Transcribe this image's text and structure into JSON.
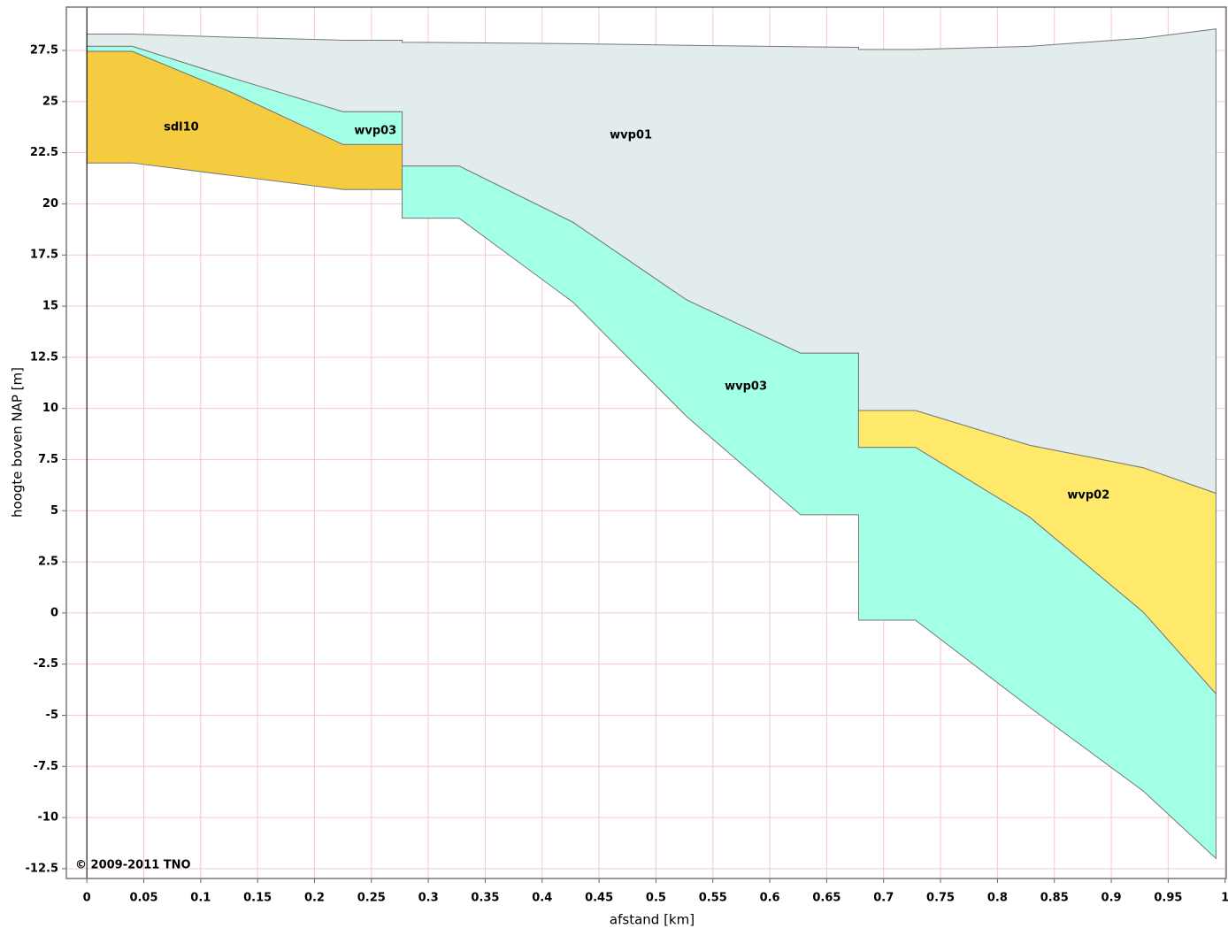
{
  "chart_data": {
    "type": "area",
    "x_label": "afstand [km]",
    "y_label": "hoogte boven NAP [m]",
    "copyright": "© 2009-2011 TNO",
    "xlim": [
      -0.018,
      1.001
    ],
    "ylim": [
      -12.98,
      29.62
    ],
    "xticks": [
      0,
      0.05,
      0.1,
      0.15,
      0.2,
      0.25,
      0.3,
      0.35,
      0.4,
      0.45,
      0.5,
      0.55,
      0.6,
      0.65,
      0.7,
      0.75,
      0.8,
      0.85,
      0.9,
      0.95,
      1
    ],
    "yticks": [
      -12.5,
      -10,
      -7.5,
      -5,
      -2.5,
      0,
      2.5,
      5,
      7.5,
      10,
      12.5,
      15,
      17.5,
      20,
      22.5,
      25,
      27.5
    ],
    "grid": true,
    "layers": [
      {
        "color": "#e2ecec",
        "x": [
          0,
          0.04,
          0.125,
          0.225,
          0.277,
          0.277,
          0.327,
          0.427,
          0.527,
          0.627,
          0.678,
          0.678,
          0.728,
          0.828,
          0.928,
          0.992
        ],
        "top": [
          28.3,
          28.3,
          28.15,
          28.0,
          28.0,
          27.9,
          27.88,
          27.83,
          27.75,
          27.68,
          27.65,
          27.55,
          27.55,
          27.7,
          28.1,
          28.55
        ],
        "bottom": [
          27.7,
          27.7,
          26.2,
          24.5,
          24.5,
          21.85,
          21.85,
          19.1,
          15.3,
          12.7,
          12.7,
          9.9,
          9.9,
          8.2,
          7.1,
          5.85
        ]
      },
      {
        "color": "#a3ffe6",
        "x": [
          0,
          0.04,
          0.125,
          0.225,
          0.277
        ],
        "top": [
          27.7,
          27.7,
          26.2,
          24.5,
          24.5
        ],
        "bottom": [
          27.45,
          27.45,
          25.5,
          22.9,
          22.9
        ]
      },
      {
        "color": "#f5cb40",
        "x": [
          0,
          0.04,
          0.125,
          0.225,
          0.277
        ],
        "top": [
          27.45,
          27.45,
          25.5,
          22.9,
          22.9
        ],
        "bottom": [
          22.0,
          22.0,
          21.4,
          20.7,
          20.7
        ]
      },
      {
        "color": "#a3ffe6",
        "x": [
          0.277,
          0.327,
          0.427,
          0.527,
          0.627,
          0.678,
          0.678,
          0.728,
          0.828,
          0.928,
          0.992
        ],
        "top": [
          21.85,
          21.85,
          19.1,
          15.3,
          12.7,
          12.7,
          8.1,
          8.1,
          4.7,
          0.05,
          -3.95
        ],
        "bottom": [
          19.3,
          19.3,
          15.2,
          9.6,
          4.8,
          4.8,
          -0.35,
          -0.35,
          -4.6,
          -8.7,
          -12.0
        ]
      },
      {
        "color": "#ffe96a",
        "x": [
          0.678,
          0.728,
          0.828,
          0.928,
          0.992
        ],
        "top": [
          9.9,
          9.9,
          8.2,
          7.1,
          5.85
        ],
        "bottom": [
          8.1,
          8.1,
          4.7,
          0.05,
          -3.95
        ]
      }
    ],
    "annotations": [
      {
        "text": "sdl10",
        "x": 0.083,
        "y": 23.74
      },
      {
        "text": "wvp03",
        "x": 0.2535,
        "y": 23.57
      },
      {
        "text": "wvp01",
        "x": 0.478,
        "y": 23.35
      },
      {
        "text": "wvp03",
        "x": 0.579,
        "y": 11.07
      },
      {
        "text": "wvp02",
        "x": 0.88,
        "y": 5.75
      }
    ]
  }
}
